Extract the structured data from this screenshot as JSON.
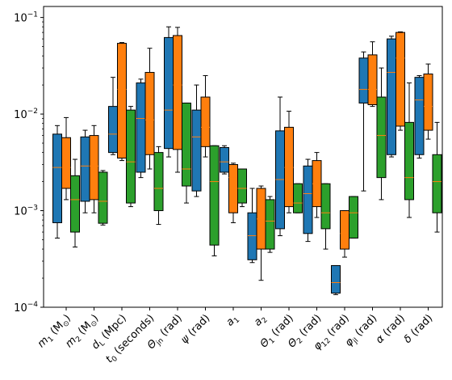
{
  "chart_data": {
    "type": "box",
    "title": "",
    "xlabel": "",
    "ylabel": "",
    "yscale": "log",
    "ylim": [
      0.0001,
      0.13
    ],
    "yticks": [
      {
        "value": 0.0001,
        "base": "10",
        "exp": "−4"
      },
      {
        "value": 0.001,
        "base": "10",
        "exp": "−3"
      },
      {
        "value": 0.01,
        "base": "10",
        "exp": "−2"
      },
      {
        "value": 0.1,
        "base": "10",
        "exp": "−1"
      }
    ],
    "categories": [
      {
        "main": "m",
        "sub": "1",
        "unit": " (M",
        "unitsub": "⊙",
        "close": ")"
      },
      {
        "main": "m",
        "sub": "2",
        "unit": " (M",
        "unitsub": "⊙",
        "close": ")"
      },
      {
        "main": "d",
        "sub": "L",
        "unit": " (Mpc)",
        "unitsub": "",
        "close": ""
      },
      {
        "main": "t",
        "sub": "0",
        "unit": " (seconds)",
        "unitsub": "",
        "close": ""
      },
      {
        "main": "Θ",
        "sub": "jn",
        "unit": " (rad)",
        "unitsub": "",
        "close": ""
      },
      {
        "main": "ψ",
        "sub": "",
        "unit": " (rad)",
        "unitsub": "",
        "close": ""
      },
      {
        "main": "a",
        "sub": "1",
        "unit": "",
        "unitsub": "",
        "close": ""
      },
      {
        "main": "a",
        "sub": "2",
        "unit": "",
        "unitsub": "",
        "close": ""
      },
      {
        "main": "Θ",
        "sub": "1",
        "unit": " (rad)",
        "unitsub": "",
        "close": ""
      },
      {
        "main": "Θ",
        "sub": "2",
        "unit": " (rad)",
        "unitsub": "",
        "close": ""
      },
      {
        "main": "φ",
        "sub": "12",
        "unit": " (rad)",
        "unitsub": "",
        "close": ""
      },
      {
        "main": "φ",
        "sub": "jl",
        "unit": " (rad)",
        "unitsub": "",
        "close": ""
      },
      {
        "main": "α",
        "sub": "",
        "unit": " (rad)",
        "unitsub": "",
        "close": ""
      },
      {
        "main": "δ",
        "sub": "",
        "unit": " (rad)",
        "unitsub": "",
        "close": ""
      }
    ],
    "series": [
      {
        "color": "#1f77b4",
        "boxes": [
          {
            "whislo": 0.00052,
            "q1": 0.00075,
            "med": 0.0028,
            "q3": 0.0062,
            "whishi": 0.0076
          },
          {
            "whislo": 0.00095,
            "q1": 0.00125,
            "med": 0.0029,
            "q3": 0.0058,
            "whishi": 0.0068
          },
          {
            "whislo": 0.0038,
            "q1": 0.004,
            "med": 0.0062,
            "q3": 0.012,
            "whishi": 0.024
          },
          {
            "whislo": 0.0022,
            "q1": 0.0025,
            "med": 0.009,
            "q3": 0.021,
            "whishi": 0.023
          },
          {
            "whislo": 0.0036,
            "q1": 0.0044,
            "med": 0.011,
            "q3": 0.062,
            "whishi": 0.08
          },
          {
            "whislo": 0.0014,
            "q1": 0.0016,
            "med": 0.0058,
            "q3": 0.011,
            "whishi": 0.02
          },
          {
            "whislo": 0.0024,
            "q1": 0.0025,
            "med": 0.0032,
            "q3": 0.0045,
            "whishi": 0.0047
          },
          {
            "whislo": 0.00029,
            "q1": 0.00031,
            "med": 0.00055,
            "q3": 0.00095,
            "whishi": 0.0017
          },
          {
            "whislo": 0.00055,
            "q1": 0.00065,
            "med": 0.0021,
            "q3": 0.0067,
            "whishi": 0.015
          },
          {
            "whislo": 0.00048,
            "q1": 0.00058,
            "med": 0.0015,
            "q3": 0.0029,
            "whishi": 0.0034
          },
          {
            "whislo": 0.000135,
            "q1": 0.00014,
            "med": 0.00018,
            "q3": 0.00027,
            "whishi": 0.00027
          },
          {
            "whislo": 0.0016,
            "q1": 0.013,
            "med": 0.018,
            "q3": 0.038,
            "whishi": 0.044
          },
          {
            "whislo": 0.0036,
            "q1": 0.0038,
            "med": 0.027,
            "q3": 0.06,
            "whishi": 0.064
          },
          {
            "whislo": 0.0035,
            "q1": 0.0038,
            "med": 0.014,
            "q3": 0.024,
            "whishi": 0.025
          }
        ]
      },
      {
        "color": "#ff7f0e",
        "boxes": [
          {
            "whislo": 0.0013,
            "q1": 0.0017,
            "med": 0.0028,
            "q3": 0.0057,
            "whishi": 0.0092
          },
          {
            "whislo": 0.00095,
            "q1": 0.0013,
            "med": 0.0029,
            "q3": 0.006,
            "whishi": 0.0076
          },
          {
            "whislo": 0.0033,
            "q1": 0.0035,
            "med": 0.018,
            "q3": 0.054,
            "whishi": 0.055
          },
          {
            "whislo": 0.0027,
            "q1": 0.0038,
            "med": 0.0087,
            "q3": 0.027,
            "whishi": 0.048
          },
          {
            "whislo": 0.0025,
            "q1": 0.0043,
            "med": 0.02,
            "q3": 0.065,
            "whishi": 0.079
          },
          {
            "whislo": 0.0036,
            "q1": 0.0046,
            "med": 0.0073,
            "q3": 0.015,
            "whishi": 0.025
          },
          {
            "whislo": 0.00075,
            "q1": 0.00095,
            "med": 0.0022,
            "q3": 0.003,
            "whishi": 0.0031
          },
          {
            "whislo": 0.00019,
            "q1": 0.0004,
            "med": 0.00082,
            "q3": 0.0017,
            "whishi": 0.0018
          },
          {
            "whislo": 0.00095,
            "q1": 0.0011,
            "med": 0.0028,
            "q3": 0.0073,
            "whishi": 0.0107
          },
          {
            "whislo": 0.00085,
            "q1": 0.0011,
            "med": 0.0019,
            "q3": 0.0033,
            "whishi": 0.004
          },
          {
            "whislo": 0.00033,
            "q1": 0.0004,
            "med": 0.00058,
            "q3": 0.001,
            "whishi": 0.001
          },
          {
            "whislo": 0.012,
            "q1": 0.0125,
            "med": 0.018,
            "q3": 0.041,
            "whishi": 0.056
          },
          {
            "whislo": 0.0068,
            "q1": 0.0075,
            "med": 0.038,
            "q3": 0.07,
            "whishi": 0.071
          },
          {
            "whislo": 0.0055,
            "q1": 0.0068,
            "med": 0.012,
            "q3": 0.026,
            "whishi": 0.033
          }
        ]
      },
      {
        "color": "#2ca02c",
        "boxes": [
          {
            "whislo": 0.00042,
            "q1": 0.0006,
            "med": 0.0013,
            "q3": 0.0023,
            "whishi": 0.0034
          },
          {
            "whislo": 0.00071,
            "q1": 0.00074,
            "med": 0.00125,
            "q3": 0.0025,
            "whishi": 0.0026
          },
          {
            "whislo": 0.0011,
            "q1": 0.0012,
            "med": 0.0032,
            "q3": 0.011,
            "whishi": 0.012
          },
          {
            "whislo": 0.00072,
            "q1": 0.001,
            "med": 0.0017,
            "q3": 0.004,
            "whishi": 0.0046
          },
          {
            "whislo": 0.0012,
            "q1": 0.0018,
            "med": 0.0027,
            "q3": 0.013,
            "whishi": 0.013
          },
          {
            "whislo": 0.00034,
            "q1": 0.00044,
            "med": 0.002,
            "q3": 0.0047,
            "whishi": 0.0047
          },
          {
            "whislo": 0.0011,
            "q1": 0.0012,
            "med": 0.0017,
            "q3": 0.0027,
            "whishi": 0.0027
          },
          {
            "whislo": 0.00037,
            "q1": 0.0004,
            "med": 0.00078,
            "q3": 0.0013,
            "whishi": 0.0014
          },
          {
            "whislo": 0.00095,
            "q1": 0.00095,
            "med": 0.0012,
            "q3": 0.0019,
            "whishi": 0.0019
          },
          {
            "whislo": 0.0004,
            "q1": 0.00065,
            "med": 0.00095,
            "q3": 0.0019,
            "whishi": 0.0019
          },
          {
            "whislo": 0.00052,
            "q1": 0.00052,
            "med": 0.00095,
            "q3": 0.0014,
            "whishi": 0.0014
          },
          {
            "whislo": 0.0013,
            "q1": 0.0022,
            "med": 0.006,
            "q3": 0.015,
            "whishi": 0.03
          },
          {
            "whislo": 0.00085,
            "q1": 0.0013,
            "med": 0.0022,
            "q3": 0.0082,
            "whishi": 0.021
          },
          {
            "whislo": 0.0006,
            "q1": 0.00095,
            "med": 0.002,
            "q3": 0.0038,
            "whishi": 0.0082
          }
        ]
      }
    ],
    "median_color": "#ff7f0e",
    "grid": false,
    "legend": "none"
  }
}
